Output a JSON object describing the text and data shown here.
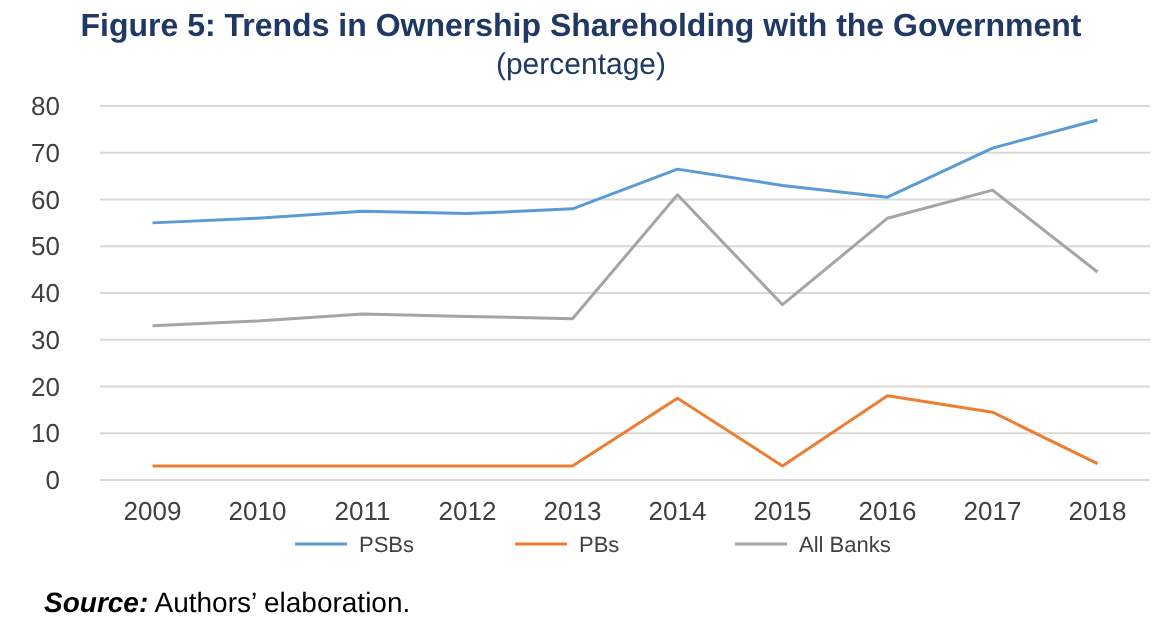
{
  "chart_data": {
    "type": "line",
    "title": "Figure 5: Trends in Ownership Shareholding with the Government",
    "subtitle": "(percentage)",
    "categories": [
      "2009",
      "2010",
      "2011",
      "2012",
      "2013",
      "2014",
      "2015",
      "2016",
      "2017",
      "2018"
    ],
    "series": [
      {
        "name": "PSBs",
        "color": "#5b9bd5",
        "values": [
          55,
          56,
          57.5,
          57,
          58,
          66.5,
          63,
          60.5,
          71,
          77
        ]
      },
      {
        "name": "PBs",
        "color": "#ed7d31",
        "values": [
          3,
          3,
          3,
          3,
          3,
          17.5,
          3,
          18,
          14.5,
          3.5
        ]
      },
      {
        "name": "All Banks",
        "color": "#a5a5a5",
        "values": [
          33,
          34,
          35.5,
          35,
          34.5,
          61,
          37.5,
          56,
          62,
          44.5
        ]
      }
    ],
    "ylim": [
      0,
      80
    ],
    "yticks": [
      0,
      10,
      20,
      30,
      40,
      50,
      60,
      70,
      80
    ],
    "grid": "y",
    "legend": "bottom",
    "marker": "none",
    "line_style": "solid",
    "annotations": [
      "Source: Authors’ elaboration."
    ]
  }
}
